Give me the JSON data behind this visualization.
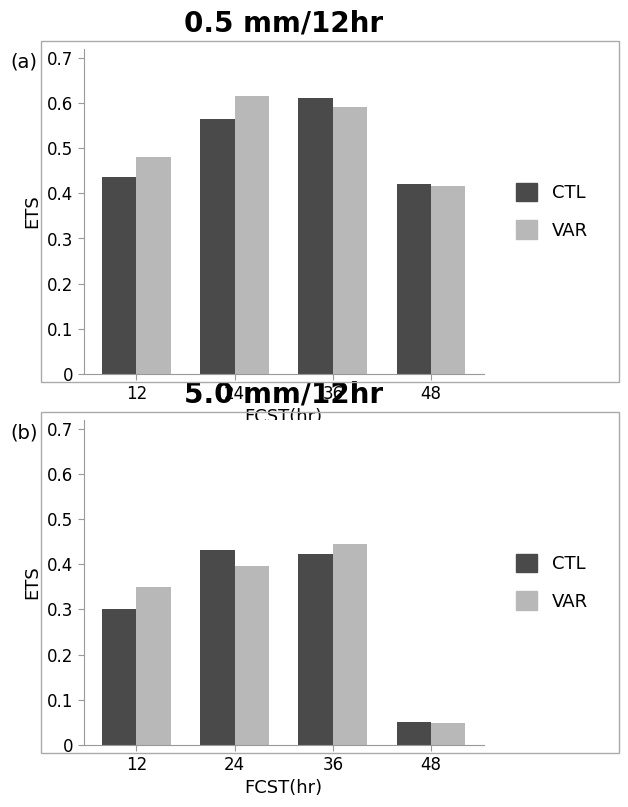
{
  "panel_a": {
    "title": "0.5 mm/12hr",
    "label": "(a)",
    "categories": [
      "12",
      "24",
      "36",
      "48"
    ],
    "CTL": [
      0.435,
      0.565,
      0.61,
      0.42
    ],
    "VAR": [
      0.48,
      0.615,
      0.59,
      0.415
    ]
  },
  "panel_b": {
    "title": "5.0 mm/12hr",
    "label": "(b)",
    "categories": [
      "12",
      "24",
      "36",
      "48"
    ],
    "CTL": [
      0.3,
      0.432,
      0.422,
      0.05
    ],
    "VAR": [
      0.35,
      0.395,
      0.445,
      0.048
    ]
  },
  "ctl_color": "#4a4a4a",
  "var_color": "#b8b8b8",
  "bar_width": 0.35,
  "ylim": [
    0,
    0.72
  ],
  "yticks": [
    0,
    0.1,
    0.2,
    0.3,
    0.4,
    0.5,
    0.6,
    0.7
  ],
  "ytick_labels": [
    "0",
    "0.1",
    "0.2",
    "0.3",
    "0.4",
    "0.5",
    "0.6",
    "0.7"
  ],
  "xlabel": "FCST(hr)",
  "ylabel": "ETS",
  "title_fontsize": 20,
  "axis_label_fontsize": 13,
  "tick_fontsize": 12,
  "legend_fontsize": 13,
  "ab_label_fontsize": 14,
  "background_color": "#ffffff",
  "outer_border_color": "#cccccc"
}
